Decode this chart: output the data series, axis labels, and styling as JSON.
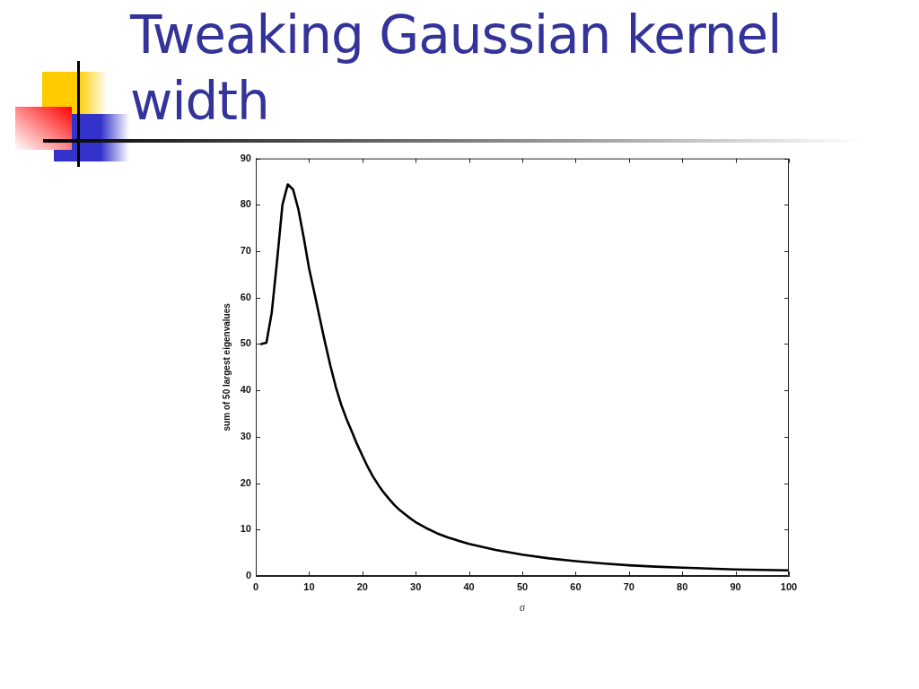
{
  "chart_data": {
    "type": "line",
    "title": "Tweaking Gaussian kernel width",
    "xlabel": "σ",
    "ylabel": "sum of 50 largest eigenvalues",
    "x": [
      1,
      2,
      3,
      4,
      5,
      6,
      7,
      8,
      9,
      10,
      11,
      12,
      13,
      14,
      15,
      16,
      17,
      18,
      19,
      20,
      21,
      22,
      23,
      24,
      25,
      26,
      27,
      28,
      29,
      30,
      32,
      34,
      36,
      38,
      40,
      45,
      50,
      55,
      60,
      65,
      70,
      75,
      80,
      85,
      90,
      95,
      100
    ],
    "series": [
      {
        "color": "#000000",
        "values": [
          50,
          50.3,
          56.8,
          68,
          80,
          84.4,
          83.3,
          79,
          72.9,
          66.3,
          61,
          55.6,
          50.3,
          45.3,
          40.8,
          37,
          33.9,
          31.2,
          28.4,
          25.9,
          23.5,
          21.4,
          19.6,
          18,
          16.6,
          15.3,
          14.2,
          13.3,
          12.4,
          11.6,
          10.3,
          9.2,
          8.3,
          7.6,
          6.9,
          5.6,
          4.6,
          3.8,
          3.2,
          2.7,
          2.3,
          2.0,
          1.8,
          1.6,
          1.4,
          1.3,
          1.2
        ]
      }
    ],
    "xlim": [
      0,
      100
    ],
    "ylim": [
      0,
      90
    ],
    "xticks": [
      0,
      10,
      20,
      30,
      40,
      50,
      60,
      70,
      80,
      90,
      100
    ],
    "yticks": [
      0,
      10,
      20,
      30,
      40,
      50,
      60,
      70,
      80,
      90
    ],
    "marker": "none",
    "line_style": "solid"
  }
}
